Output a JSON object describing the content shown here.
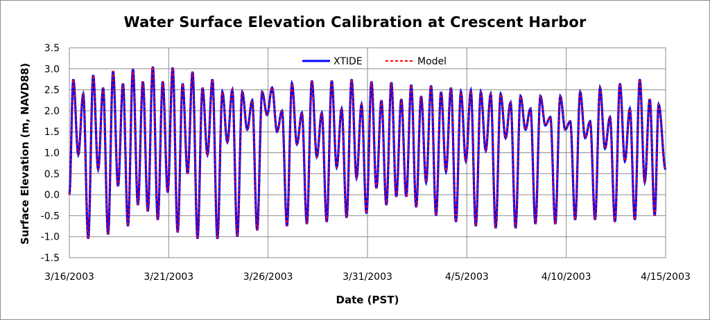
{
  "chart_data": {
    "type": "line",
    "title": "Water Surface Elevation Calibration at Crescent Harbor",
    "xlabel": "Date (PST)",
    "ylabel": "Surface Elevation (m, NAVD88)",
    "ylim": [
      -1.5,
      3.5
    ],
    "yticks": [
      "-1.5",
      "-1.0",
      "-0.5",
      "0.0",
      "0.5",
      "1.0",
      "1.5",
      "2.0",
      "2.5",
      "3.0",
      "3.5"
    ],
    "xlim_days": [
      0,
      30
    ],
    "xticks": [
      {
        "day": 0,
        "label": "3/16/2003"
      },
      {
        "day": 5,
        "label": "3/21/2003"
      },
      {
        "day": 10,
        "label": "3/26/2003"
      },
      {
        "day": 15,
        "label": "3/31/2003"
      },
      {
        "day": 20,
        "label": "4/5/2003"
      },
      {
        "day": 25,
        "label": "4/10/2003"
      },
      {
        "day": 30,
        "label": "4/15/2003"
      }
    ],
    "legend_position": "top-center",
    "series": [
      {
        "name": "XTIDE",
        "color": "#0000ff",
        "style": "solid"
      },
      {
        "name": "Model",
        "color": "#ff0000",
        "style": "dashed"
      }
    ],
    "extrema": [
      [
        0.0,
        0.0
      ],
      [
        0.2,
        2.75
      ],
      [
        0.45,
        0.95
      ],
      [
        0.7,
        2.4
      ],
      [
        0.95,
        -1.05
      ],
      [
        1.2,
        2.85
      ],
      [
        1.45,
        0.6
      ],
      [
        1.7,
        2.55
      ],
      [
        1.95,
        -0.95
      ],
      [
        2.2,
        2.95
      ],
      [
        2.45,
        0.2
      ],
      [
        2.7,
        2.65
      ],
      [
        2.95,
        -0.75
      ],
      [
        3.2,
        3.0
      ],
      [
        3.45,
        -0.25
      ],
      [
        3.7,
        2.7
      ],
      [
        3.95,
        -0.4
      ],
      [
        4.2,
        3.05
      ],
      [
        4.45,
        -0.6
      ],
      [
        4.7,
        2.7
      ],
      [
        4.95,
        0.05
      ],
      [
        5.2,
        3.03
      ],
      [
        5.45,
        -0.9
      ],
      [
        5.7,
        2.65
      ],
      [
        5.95,
        0.5
      ],
      [
        6.2,
        2.93
      ],
      [
        6.45,
        -1.05
      ],
      [
        6.7,
        2.55
      ],
      [
        6.95,
        0.95
      ],
      [
        7.2,
        2.75
      ],
      [
        7.45,
        -1.05
      ],
      [
        7.7,
        2.45
      ],
      [
        7.95,
        1.25
      ],
      [
        8.2,
        2.5
      ],
      [
        8.45,
        -1.0
      ],
      [
        8.7,
        2.45
      ],
      [
        8.95,
        1.55
      ],
      [
        9.2,
        2.25
      ],
      [
        9.45,
        -0.85
      ],
      [
        9.7,
        2.45
      ],
      [
        9.95,
        1.9
      ],
      [
        10.2,
        2.55
      ],
      [
        10.45,
        1.5
      ],
      [
        10.7,
        2.0
      ],
      [
        10.95,
        -0.75
      ],
      [
        11.2,
        2.65
      ],
      [
        11.45,
        1.2
      ],
      [
        11.7,
        1.95
      ],
      [
        11.95,
        -0.7
      ],
      [
        12.2,
        2.72
      ],
      [
        12.45,
        0.9
      ],
      [
        12.7,
        1.95
      ],
      [
        12.95,
        -0.65
      ],
      [
        13.2,
        2.72
      ],
      [
        13.45,
        0.65
      ],
      [
        13.7,
        2.05
      ],
      [
        13.95,
        -0.55
      ],
      [
        14.2,
        2.75
      ],
      [
        14.45,
        0.4
      ],
      [
        14.7,
        2.15
      ],
      [
        14.95,
        -0.45
      ],
      [
        15.2,
        2.7
      ],
      [
        15.45,
        0.15
      ],
      [
        15.7,
        2.25
      ],
      [
        15.95,
        -0.25
      ],
      [
        16.2,
        2.68
      ],
      [
        16.45,
        -0.05
      ],
      [
        16.7,
        2.28
      ],
      [
        16.95,
        -0.05
      ],
      [
        17.2,
        2.62
      ],
      [
        17.45,
        -0.3
      ],
      [
        17.7,
        2.35
      ],
      [
        17.95,
        0.3
      ],
      [
        18.2,
        2.6
      ],
      [
        18.45,
        -0.5
      ],
      [
        18.7,
        2.45
      ],
      [
        18.95,
        0.55
      ],
      [
        19.2,
        2.55
      ],
      [
        19.45,
        -0.65
      ],
      [
        19.7,
        2.45
      ],
      [
        19.95,
        0.8
      ],
      [
        20.2,
        2.48
      ],
      [
        20.45,
        -0.75
      ],
      [
        20.7,
        2.45
      ],
      [
        20.95,
        1.05
      ],
      [
        21.2,
        2.4
      ],
      [
        21.45,
        -0.8
      ],
      [
        21.7,
        2.4
      ],
      [
        21.95,
        1.35
      ],
      [
        22.2,
        2.2
      ],
      [
        22.45,
        -0.8
      ],
      [
        22.7,
        2.35
      ],
      [
        22.95,
        1.55
      ],
      [
        23.2,
        2.05
      ],
      [
        23.45,
        -0.7
      ],
      [
        23.7,
        2.35
      ],
      [
        23.95,
        1.65
      ],
      [
        24.2,
        1.85
      ],
      [
        24.45,
        -0.7
      ],
      [
        24.7,
        2.35
      ],
      [
        24.95,
        1.55
      ],
      [
        25.2,
        1.75
      ],
      [
        25.45,
        -0.6
      ],
      [
        25.7,
        2.45
      ],
      [
        25.95,
        1.35
      ],
      [
        26.2,
        1.75
      ],
      [
        26.45,
        -0.6
      ],
      [
        26.7,
        2.55
      ],
      [
        26.95,
        1.1
      ],
      [
        27.2,
        1.85
      ],
      [
        27.45,
        -0.65
      ],
      [
        27.7,
        2.65
      ],
      [
        27.95,
        0.8
      ],
      [
        28.2,
        2.05
      ],
      [
        28.45,
        -0.6
      ],
      [
        28.7,
        2.75
      ],
      [
        28.95,
        0.3
      ],
      [
        29.2,
        2.28
      ],
      [
        29.45,
        -0.5
      ],
      [
        29.65,
        2.15
      ],
      [
        30.0,
        0.6
      ]
    ]
  }
}
